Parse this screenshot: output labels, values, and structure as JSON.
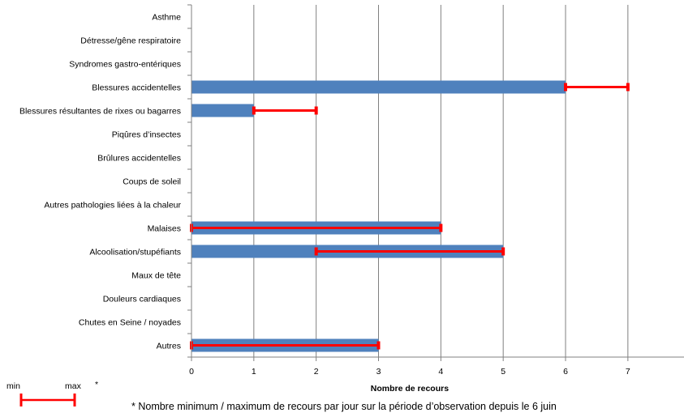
{
  "chart_data": {
    "type": "bar",
    "orientation": "horizontal",
    "categories": [
      "Asthme",
      "Détresse/gêne respiratoire",
      "Syndromes gastro-entériques",
      "Blessures accidentelles",
      "Blessures résultantes de rixes ou bagarres",
      "Piqûres d’insectes",
      "Brûlures accidentelles",
      "Coups de soleil",
      "Autres pathologies liées à la chaleur",
      "Malaises",
      "Alcoolisation/stupéfiants",
      "Maux de tête",
      "Douleurs cardiaques",
      "Chutes en Seine / noyades",
      "Autres"
    ],
    "values": [
      0,
      0,
      0,
      6,
      1,
      0,
      0,
      0,
      0,
      4,
      5,
      0,
      0,
      0,
      3
    ],
    "range_min": [
      null,
      null,
      null,
      6,
      1,
      null,
      null,
      null,
      null,
      0,
      2,
      null,
      null,
      null,
      0
    ],
    "range_max": [
      null,
      null,
      null,
      7,
      2,
      null,
      null,
      null,
      null,
      4,
      5,
      null,
      null,
      null,
      3
    ],
    "xlabel": "Nombre de recours",
    "xlim": [
      0,
      7.9
    ],
    "xticks": [
      0,
      1,
      2,
      3,
      4,
      5,
      6,
      7
    ],
    "grid": "vertical",
    "bar_color": "#4f81bd",
    "range_color": "#ff0000"
  },
  "legend": {
    "min_label": "min",
    "max_label": "max",
    "asterisk": "*"
  },
  "footnote": "* Nombre minimum / maximum de recours par jour sur la période d’observation depuis le 6 juin"
}
